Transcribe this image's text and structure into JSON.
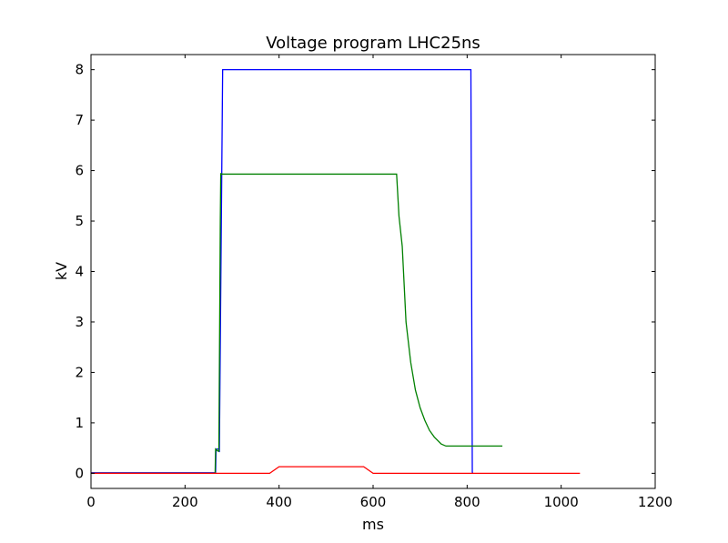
{
  "chart_data": {
    "type": "line",
    "title": "Voltage program LHC25ns",
    "xlabel": "ms",
    "ylabel": "kV",
    "xlim": [
      0,
      1200
    ],
    "ylim": [
      -0.3,
      8.3
    ],
    "xticks": [
      0,
      200,
      400,
      600,
      800,
      1000,
      1200
    ],
    "yticks": [
      0,
      1,
      2,
      3,
      4,
      5,
      6,
      7,
      8
    ],
    "grid": false,
    "series": [
      {
        "color": "#0000ff",
        "x": [
          0,
          265,
          266,
          272,
          273,
          280,
          281,
          808,
          811,
          812
        ],
        "y": [
          0.01,
          0.01,
          0.48,
          0.48,
          0.42,
          8.0,
          8.0,
          8.0,
          0.02,
          0.0
        ]
      },
      {
        "color": "#008000",
        "x": [
          0,
          264,
          265,
          270,
          272,
          275,
          276,
          277,
          279,
          650,
          655,
          662,
          670,
          680,
          690,
          700,
          710,
          720,
          730,
          745,
          755,
          780,
          875
        ],
        "y": [
          0.0,
          0.0,
          0.48,
          0.44,
          0.44,
          5.0,
          5.95,
          5.93,
          5.93,
          5.93,
          5.1,
          4.5,
          3.0,
          2.2,
          1.65,
          1.3,
          1.05,
          0.85,
          0.72,
          0.58,
          0.54,
          0.54,
          0.54
        ]
      },
      {
        "color": "#ff0000",
        "x": [
          0,
          380,
          400,
          580,
          600,
          1040
        ],
        "y": [
          0.0,
          0.0,
          0.13,
          0.13,
          0.0,
          0.0
        ]
      }
    ]
  }
}
